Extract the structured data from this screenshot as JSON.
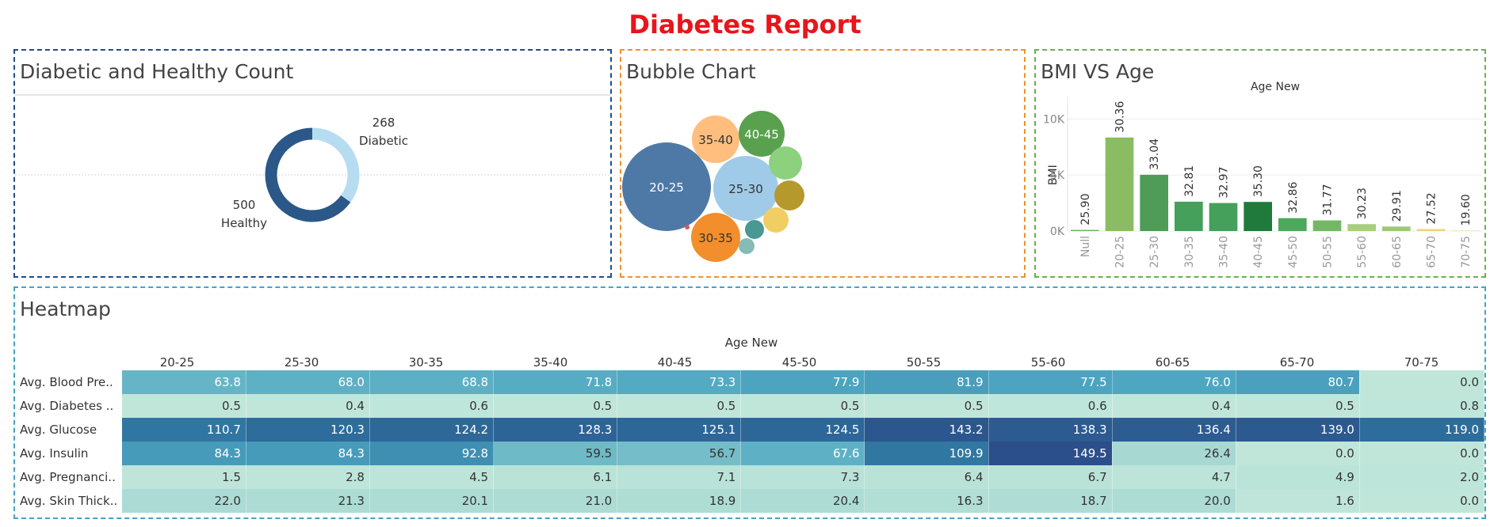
{
  "report_title": "Diabetes Report",
  "donut": {
    "title": "Diabetic and Healthy Count",
    "slices": [
      {
        "label": "Diabetic",
        "value": 268,
        "color": "#b6dcf2"
      },
      {
        "label": "Healthy",
        "value": 500,
        "color": "#2b5888"
      }
    ]
  },
  "bubble": {
    "title": "Bubble Chart",
    "bubbles": [
      {
        "label": "20-25",
        "color": "#4e79a7"
      },
      {
        "label": "25-30",
        "color": "#a0cbe8"
      },
      {
        "label": "35-40",
        "color": "#ffbe7d"
      },
      {
        "label": "40-45",
        "color": "#59a14f"
      },
      {
        "label": "30-35",
        "color": "#f28e2b"
      },
      {
        "label": "",
        "color": "#8cd17d"
      },
      {
        "label": "",
        "color": "#b6992d"
      },
      {
        "label": "",
        "color": "#f1ce63"
      },
      {
        "label": "",
        "color": "#499894"
      },
      {
        "label": "",
        "color": "#86bcb6"
      },
      {
        "label": "",
        "color": "#e15759"
      }
    ]
  },
  "bmi": {
    "title": "BMI VS Age",
    "chart_data": {
      "type": "bar",
      "title": "BMI VS Age",
      "xlabel": "Age New",
      "ylabel": "BMI",
      "categories": [
        "Null",
        "20-25",
        "25-30",
        "30-35",
        "35-40",
        "40-45",
        "45-50",
        "50-55",
        "55-60",
        "60-65",
        "65-70",
        "70-75"
      ],
      "values": [
        100,
        8350,
        5020,
        2620,
        2500,
        2600,
        1150,
        950,
        620,
        400,
        180,
        40
      ],
      "labels": [
        "25.90",
        "30.36",
        "33.04",
        "32.81",
        "32.97",
        "35.30",
        "32.86",
        "31.77",
        "30.23",
        "29.91",
        "27.52",
        "19.60"
      ],
      "colors": [
        "#6bb05a",
        "#8abd63",
        "#4e9c57",
        "#44a05a",
        "#44a05a",
        "#1f7a3c",
        "#4ca85a",
        "#74b866",
        "#a7cf7c",
        "#9ec874",
        "#f2d27a",
        "#d9d9a0"
      ],
      "yticks": [
        0,
        5000,
        10000
      ],
      "ytick_labels": [
        "0K",
        "5K",
        "10K"
      ],
      "ylim": [
        0,
        12000
      ],
      "grid": true
    }
  },
  "heatmap": {
    "title": "Heatmap",
    "xlabel": "Age New",
    "chart_data": {
      "type": "heatmap",
      "columns": [
        "20-25",
        "25-30",
        "30-35",
        "35-40",
        "40-45",
        "45-50",
        "50-55",
        "55-60",
        "60-65",
        "65-70",
        "70-75"
      ],
      "rows": [
        "Avg. Blood Pre..",
        "Avg. Diabetes ..",
        "Avg. Glucose",
        "Avg. Insulin",
        "Avg. Pregnanci..",
        "Avg. Skin Thick.."
      ],
      "values": [
        [
          63.8,
          68.0,
          68.8,
          71.8,
          73.3,
          77.9,
          81.9,
          77.5,
          76.0,
          80.7,
          0.0
        ],
        [
          0.5,
          0.4,
          0.6,
          0.5,
          0.5,
          0.5,
          0.5,
          0.6,
          0.4,
          0.5,
          0.8
        ],
        [
          110.7,
          120.3,
          124.2,
          128.3,
          125.1,
          124.5,
          143.2,
          138.3,
          136.4,
          139.0,
          119.0
        ],
        [
          84.3,
          84.3,
          92.8,
          59.5,
          56.7,
          67.6,
          109.9,
          149.5,
          26.4,
          0.0,
          0.0
        ],
        [
          1.5,
          2.8,
          4.5,
          6.1,
          7.1,
          7.3,
          6.4,
          6.7,
          4.7,
          4.9,
          2.0
        ],
        [
          22.0,
          21.3,
          20.1,
          21.0,
          18.9,
          20.4,
          16.3,
          18.7,
          20.0,
          1.6,
          0.0
        ]
      ],
      "display": [
        [
          "63.8",
          "68.0",
          "68.8",
          "71.8",
          "73.3",
          "77.9",
          "81.9",
          "77.5",
          "76.0",
          "80.7",
          "0.0"
        ],
        [
          "0.5",
          "0.4",
          "0.6",
          "0.5",
          "0.5",
          "0.5",
          "0.5",
          "0.6",
          "0.4",
          "0.5",
          "0.8"
        ],
        [
          "110.7",
          "120.3",
          "124.2",
          "128.3",
          "125.1",
          "124.5",
          "143.2",
          "138.3",
          "136.4",
          "139.0",
          "119.0"
        ],
        [
          "84.3",
          "84.3",
          "92.8",
          "59.5",
          "56.7",
          "67.6",
          "109.9",
          "149.5",
          "26.4",
          "0.0",
          "0.0"
        ],
        [
          "1.5",
          "2.8",
          "4.5",
          "6.1",
          "7.1",
          "7.3",
          "6.4",
          "6.7",
          "4.7",
          "4.9",
          "2.0"
        ],
        [
          "22.0",
          "21.3",
          "20.1",
          "21.0",
          "18.9",
          "20.4",
          "16.3",
          "18.7",
          "20.0",
          "1.6",
          "0.0"
        ]
      ],
      "color_scale": [
        "#c0e6da",
        "#9dd4cf",
        "#4fa8c2",
        "#2e73a0",
        "#2b4f8a"
      ],
      "color_range": [
        0,
        150
      ]
    }
  }
}
